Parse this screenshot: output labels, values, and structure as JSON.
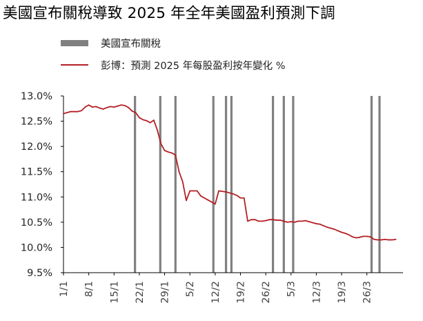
{
  "chart_data": {
    "type": "line",
    "title": "美國宣布關稅導致 2025 年全年美國盈利預測下調",
    "legend": [
      {
        "key": "tariff",
        "label": "美國宣布關稅",
        "color": "#808080",
        "kind": "bar"
      },
      {
        "key": "eps",
        "label": "彭博：預測 2025 年每股盈利按年變化 %",
        "color": "#b41f24",
        "kind": "line"
      }
    ],
    "legend_position": "top-left",
    "x_tick_labels": [
      "1/1",
      "8/1",
      "15/1",
      "22/1",
      "29/1",
      "5/2",
      "12/2",
      "19/2",
      "26/2",
      "5/3",
      "12/3",
      "19/3",
      "26/3"
    ],
    "x_tick_days": [
      0,
      7,
      14,
      21,
      28,
      35,
      42,
      49,
      56,
      63,
      70,
      77,
      84
    ],
    "xlim": [
      0,
      94
    ],
    "ylim": [
      9.5,
      13.0
    ],
    "y_ticks": [
      9.5,
      10.0,
      10.5,
      11.0,
      11.5,
      12.0,
      12.5,
      13.0
    ],
    "y_tick_labels": [
      "9.5%",
      "10.0%",
      "10.5%",
      "11.0%",
      "11.5%",
      "12.0%",
      "12.5%",
      "13.0%"
    ],
    "grid": false,
    "tariff_announcement_days": [
      19.8,
      26.8,
      31,
      41.5,
      45,
      46.5,
      58,
      61,
      63.6,
      85.3,
      87.5
    ],
    "series": [
      {
        "name": "彭博：預測 2025 年每股盈利按年變化 %",
        "x": [
          0,
          1,
          2,
          3,
          4,
          5,
          6,
          7,
          8,
          9,
          10,
          11,
          12,
          13,
          14,
          15,
          16,
          17,
          18,
          19,
          20,
          21,
          22,
          23,
          24,
          25,
          26,
          27,
          28,
          29,
          30,
          31,
          32,
          33,
          34,
          35,
          36,
          37,
          38,
          39,
          40,
          41,
          42,
          43,
          44,
          45,
          46,
          47,
          48,
          49,
          50,
          51,
          52,
          53,
          54,
          55,
          56,
          57,
          58,
          59,
          60,
          61,
          62,
          63,
          64,
          65,
          66,
          67,
          68,
          69,
          70,
          71,
          72,
          73,
          74,
          75,
          76,
          77,
          78,
          79,
          80,
          81,
          82,
          83,
          84,
          85,
          86,
          87,
          88,
          89,
          90,
          91,
          92
        ],
        "values": [
          12.65,
          12.67,
          12.69,
          12.69,
          12.69,
          12.71,
          12.78,
          12.82,
          12.78,
          12.79,
          12.76,
          12.74,
          12.77,
          12.79,
          12.78,
          12.8,
          12.82,
          12.81,
          12.77,
          12.7,
          12.67,
          12.57,
          12.53,
          12.51,
          12.47,
          12.52,
          12.32,
          12.05,
          11.92,
          11.89,
          11.87,
          11.83,
          11.5,
          11.3,
          10.93,
          11.12,
          11.12,
          11.12,
          11.02,
          10.98,
          10.94,
          10.9,
          10.86,
          11.12,
          11.11,
          11.1,
          11.08,
          11.06,
          11.03,
          10.98,
          10.98,
          10.52,
          10.55,
          10.55,
          10.52,
          10.52,
          10.53,
          10.55,
          10.55,
          10.54,
          10.54,
          10.52,
          10.5,
          10.51,
          10.5,
          10.52,
          10.52,
          10.53,
          10.51,
          10.49,
          10.47,
          10.46,
          10.43,
          10.4,
          10.38,
          10.36,
          10.33,
          10.3,
          10.28,
          10.25,
          10.21,
          10.19,
          10.2,
          10.22,
          10.22,
          10.21,
          10.16,
          10.15,
          10.15,
          10.16,
          10.15,
          10.15,
          10.16
        ],
        "color": "#b41f24"
      }
    ]
  }
}
